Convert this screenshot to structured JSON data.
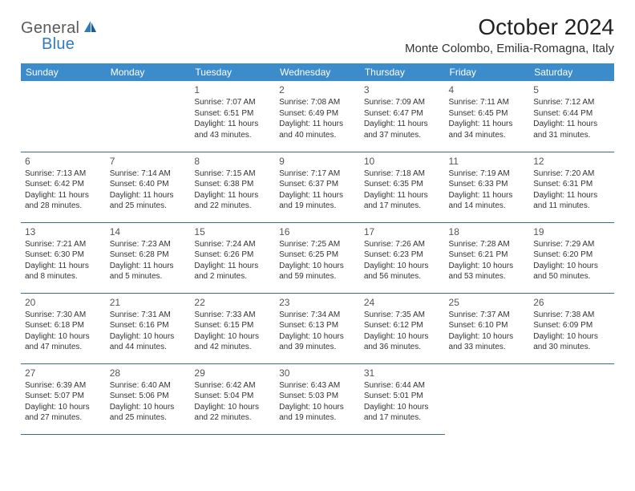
{
  "logo": {
    "text1": "General",
    "text2": "Blue"
  },
  "title": "October 2024",
  "location": "Monte Colombo, Emilia-Romagna, Italy",
  "colors": {
    "header_bg": "#3c8ccc",
    "header_text": "#ffffff",
    "border": "#3d6b94",
    "logo_gray": "#5a5a5a",
    "logo_blue": "#2f7bbf"
  },
  "weekdays": [
    "Sunday",
    "Monday",
    "Tuesday",
    "Wednesday",
    "Thursday",
    "Friday",
    "Saturday"
  ],
  "weeks": [
    [
      null,
      null,
      {
        "n": "1",
        "sr": "Sunrise: 7:07 AM",
        "ss": "Sunset: 6:51 PM",
        "d1": "Daylight: 11 hours",
        "d2": "and 43 minutes."
      },
      {
        "n": "2",
        "sr": "Sunrise: 7:08 AM",
        "ss": "Sunset: 6:49 PM",
        "d1": "Daylight: 11 hours",
        "d2": "and 40 minutes."
      },
      {
        "n": "3",
        "sr": "Sunrise: 7:09 AM",
        "ss": "Sunset: 6:47 PM",
        "d1": "Daylight: 11 hours",
        "d2": "and 37 minutes."
      },
      {
        "n": "4",
        "sr": "Sunrise: 7:11 AM",
        "ss": "Sunset: 6:45 PM",
        "d1": "Daylight: 11 hours",
        "d2": "and 34 minutes."
      },
      {
        "n": "5",
        "sr": "Sunrise: 7:12 AM",
        "ss": "Sunset: 6:44 PM",
        "d1": "Daylight: 11 hours",
        "d2": "and 31 minutes."
      }
    ],
    [
      {
        "n": "6",
        "sr": "Sunrise: 7:13 AM",
        "ss": "Sunset: 6:42 PM",
        "d1": "Daylight: 11 hours",
        "d2": "and 28 minutes."
      },
      {
        "n": "7",
        "sr": "Sunrise: 7:14 AM",
        "ss": "Sunset: 6:40 PM",
        "d1": "Daylight: 11 hours",
        "d2": "and 25 minutes."
      },
      {
        "n": "8",
        "sr": "Sunrise: 7:15 AM",
        "ss": "Sunset: 6:38 PM",
        "d1": "Daylight: 11 hours",
        "d2": "and 22 minutes."
      },
      {
        "n": "9",
        "sr": "Sunrise: 7:17 AM",
        "ss": "Sunset: 6:37 PM",
        "d1": "Daylight: 11 hours",
        "d2": "and 19 minutes."
      },
      {
        "n": "10",
        "sr": "Sunrise: 7:18 AM",
        "ss": "Sunset: 6:35 PM",
        "d1": "Daylight: 11 hours",
        "d2": "and 17 minutes."
      },
      {
        "n": "11",
        "sr": "Sunrise: 7:19 AM",
        "ss": "Sunset: 6:33 PM",
        "d1": "Daylight: 11 hours",
        "d2": "and 14 minutes."
      },
      {
        "n": "12",
        "sr": "Sunrise: 7:20 AM",
        "ss": "Sunset: 6:31 PM",
        "d1": "Daylight: 11 hours",
        "d2": "and 11 minutes."
      }
    ],
    [
      {
        "n": "13",
        "sr": "Sunrise: 7:21 AM",
        "ss": "Sunset: 6:30 PM",
        "d1": "Daylight: 11 hours",
        "d2": "and 8 minutes."
      },
      {
        "n": "14",
        "sr": "Sunrise: 7:23 AM",
        "ss": "Sunset: 6:28 PM",
        "d1": "Daylight: 11 hours",
        "d2": "and 5 minutes."
      },
      {
        "n": "15",
        "sr": "Sunrise: 7:24 AM",
        "ss": "Sunset: 6:26 PM",
        "d1": "Daylight: 11 hours",
        "d2": "and 2 minutes."
      },
      {
        "n": "16",
        "sr": "Sunrise: 7:25 AM",
        "ss": "Sunset: 6:25 PM",
        "d1": "Daylight: 10 hours",
        "d2": "and 59 minutes."
      },
      {
        "n": "17",
        "sr": "Sunrise: 7:26 AM",
        "ss": "Sunset: 6:23 PM",
        "d1": "Daylight: 10 hours",
        "d2": "and 56 minutes."
      },
      {
        "n": "18",
        "sr": "Sunrise: 7:28 AM",
        "ss": "Sunset: 6:21 PM",
        "d1": "Daylight: 10 hours",
        "d2": "and 53 minutes."
      },
      {
        "n": "19",
        "sr": "Sunrise: 7:29 AM",
        "ss": "Sunset: 6:20 PM",
        "d1": "Daylight: 10 hours",
        "d2": "and 50 minutes."
      }
    ],
    [
      {
        "n": "20",
        "sr": "Sunrise: 7:30 AM",
        "ss": "Sunset: 6:18 PM",
        "d1": "Daylight: 10 hours",
        "d2": "and 47 minutes."
      },
      {
        "n": "21",
        "sr": "Sunrise: 7:31 AM",
        "ss": "Sunset: 6:16 PM",
        "d1": "Daylight: 10 hours",
        "d2": "and 44 minutes."
      },
      {
        "n": "22",
        "sr": "Sunrise: 7:33 AM",
        "ss": "Sunset: 6:15 PM",
        "d1": "Daylight: 10 hours",
        "d2": "and 42 minutes."
      },
      {
        "n": "23",
        "sr": "Sunrise: 7:34 AM",
        "ss": "Sunset: 6:13 PM",
        "d1": "Daylight: 10 hours",
        "d2": "and 39 minutes."
      },
      {
        "n": "24",
        "sr": "Sunrise: 7:35 AM",
        "ss": "Sunset: 6:12 PM",
        "d1": "Daylight: 10 hours",
        "d2": "and 36 minutes."
      },
      {
        "n": "25",
        "sr": "Sunrise: 7:37 AM",
        "ss": "Sunset: 6:10 PM",
        "d1": "Daylight: 10 hours",
        "d2": "and 33 minutes."
      },
      {
        "n": "26",
        "sr": "Sunrise: 7:38 AM",
        "ss": "Sunset: 6:09 PM",
        "d1": "Daylight: 10 hours",
        "d2": "and 30 minutes."
      }
    ],
    [
      {
        "n": "27",
        "sr": "Sunrise: 6:39 AM",
        "ss": "Sunset: 5:07 PM",
        "d1": "Daylight: 10 hours",
        "d2": "and 27 minutes."
      },
      {
        "n": "28",
        "sr": "Sunrise: 6:40 AM",
        "ss": "Sunset: 5:06 PM",
        "d1": "Daylight: 10 hours",
        "d2": "and 25 minutes."
      },
      {
        "n": "29",
        "sr": "Sunrise: 6:42 AM",
        "ss": "Sunset: 5:04 PM",
        "d1": "Daylight: 10 hours",
        "d2": "and 22 minutes."
      },
      {
        "n": "30",
        "sr": "Sunrise: 6:43 AM",
        "ss": "Sunset: 5:03 PM",
        "d1": "Daylight: 10 hours",
        "d2": "and 19 minutes."
      },
      {
        "n": "31",
        "sr": "Sunrise: 6:44 AM",
        "ss": "Sunset: 5:01 PM",
        "d1": "Daylight: 10 hours",
        "d2": "and 17 minutes."
      },
      null,
      null
    ]
  ]
}
